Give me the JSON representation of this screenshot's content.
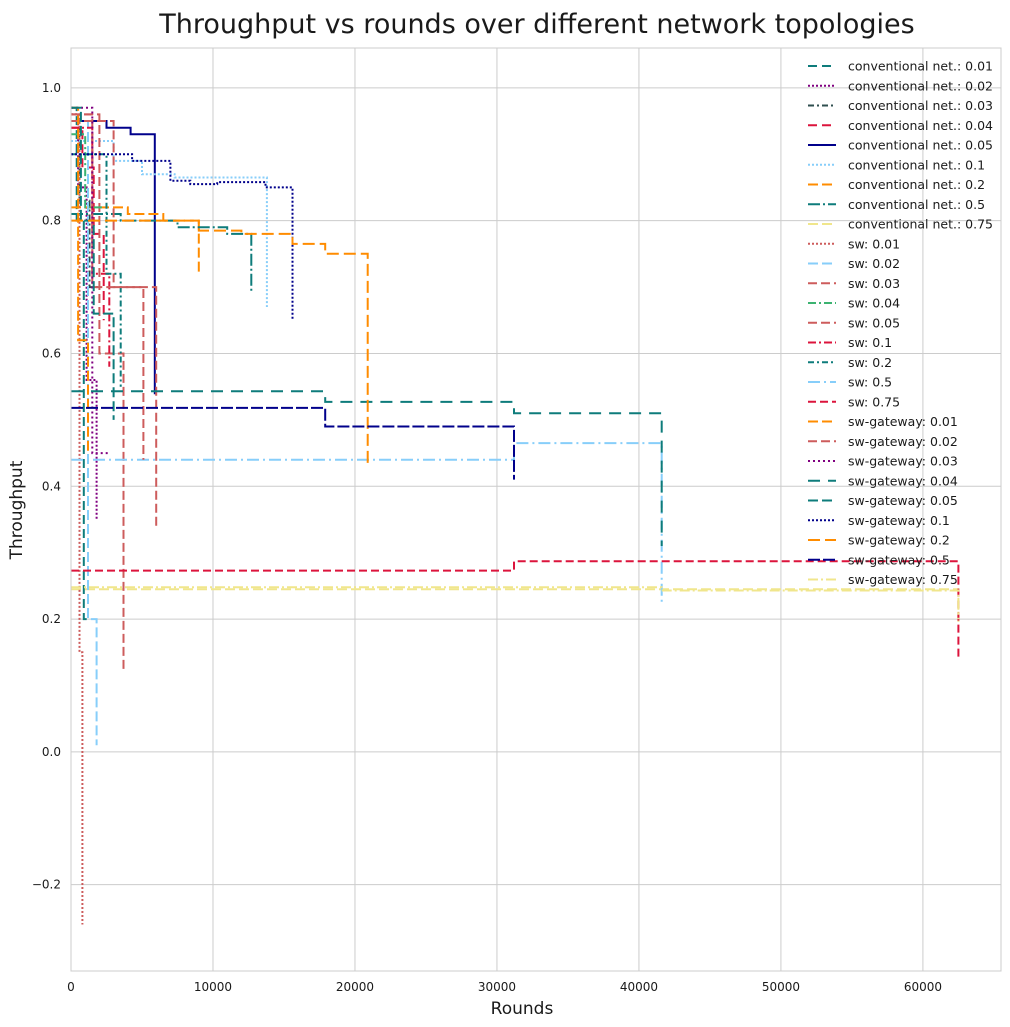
{
  "chart_data": {
    "type": "line",
    "title": "Throughput vs rounds over different network topologies",
    "xlabel": "Rounds",
    "ylabel": "Throughput",
    "xlim": [
      0,
      65500
    ],
    "ylim": [
      -0.33,
      1.06
    ],
    "xticks": [
      0,
      10000,
      20000,
      30000,
      40000,
      50000,
      60000
    ],
    "xtick_labels": [
      "0",
      "10000",
      "20000",
      "30000",
      "40000",
      "50000",
      "60000"
    ],
    "yticks": [
      -0.2,
      0.0,
      0.2,
      0.4,
      0.6,
      0.8,
      1.0
    ],
    "ytick_labels": [
      "−0.2",
      "0.0",
      "0.2",
      "0.4",
      "0.6",
      "0.8",
      "1.0"
    ],
    "grid": true,
    "legend_position": "top-right",
    "series": [
      {
        "name": "conventional net.: 0.01",
        "color": "#0e7c7b",
        "dash": "9 5",
        "x": [
          0,
          400,
          400,
          900,
          900,
          1400
        ],
        "y": [
          0.97,
          0.97,
          0.8,
          0.8,
          0.2,
          0.2
        ]
      },
      {
        "name": "conventional net.: 0.02",
        "color": "#800080",
        "dash": "2 2",
        "x": [
          0,
          500,
          500,
          1100,
          1100,
          1800,
          1800
        ],
        "y": [
          0.96,
          0.96,
          0.85,
          0.85,
          0.56,
          0.56,
          0.35
        ]
      },
      {
        "name": "conventional net.: 0.03",
        "color": "#2f4f4f",
        "dash": "6 3 2 3",
        "x": [
          0,
          600,
          600,
          1300,
          1300,
          2000
        ],
        "y": [
          0.95,
          0.95,
          0.83,
          0.83,
          0.7,
          0.7
        ]
      },
      {
        "name": "conventional net.: 0.04",
        "color": "#dc143c",
        "dash": "9 5",
        "x": [
          0,
          800,
          800,
          1600,
          1600,
          2300,
          2300
        ],
        "y": [
          0.94,
          0.94,
          0.88,
          0.88,
          0.78,
          0.78,
          0.65
        ]
      },
      {
        "name": "conventional net.: 0.05",
        "color": "#00008b",
        "dash": "",
        "x": [
          0,
          2500,
          2500,
          4200,
          4200,
          5900,
          5900,
          6000
        ],
        "y": [
          0.95,
          0.95,
          0.94,
          0.94,
          0.93,
          0.93,
          0.54,
          0.54
        ]
      },
      {
        "name": "conventional net.: 0.1",
        "color": "#87cefa",
        "dash": "2 2",
        "x": [
          0,
          3000,
          3000,
          5000,
          5000,
          7300,
          7300,
          13800,
          13800
        ],
        "y": [
          0.92,
          0.92,
          0.89,
          0.89,
          0.87,
          0.87,
          0.865,
          0.865,
          0.67
        ]
      },
      {
        "name": "conventional net.: 0.2",
        "color": "#ff8c00",
        "dash": "10 4",
        "x": [
          0,
          4000,
          4000,
          6500,
          6500,
          9000,
          9000
        ],
        "y": [
          0.82,
          0.82,
          0.81,
          0.81,
          0.8,
          0.8,
          0.72
        ]
      },
      {
        "name": "conventional net.: 0.5",
        "color": "#0e7c7b",
        "dash": "12 3 2 3",
        "x": [
          0,
          3500,
          3500,
          7500,
          7500,
          11000,
          11000,
          12700,
          12700
        ],
        "y": [
          0.81,
          0.81,
          0.8,
          0.8,
          0.79,
          0.79,
          0.78,
          0.78,
          0.69
        ]
      },
      {
        "name": "conventional net.: 0.75",
        "color": "#f0e68c",
        "dash": "10 4",
        "x": [
          0,
          62500,
          62500
        ],
        "y": [
          0.245,
          0.245,
          0.19
        ]
      },
      {
        "name": "sw: 0.01",
        "color": "#cd5c5c",
        "dash": "2 2",
        "x": [
          0,
          600,
          600,
          800,
          800
        ],
        "y": [
          0.96,
          0.96,
          0.15,
          0.15,
          -0.26
        ]
      },
      {
        "name": "sw: 0.02",
        "color": "#87cefa",
        "dash": "10 4",
        "x": [
          0,
          1200,
          1200,
          1800,
          1800
        ],
        "y": [
          0.95,
          0.95,
          0.2,
          0.2,
          0.01
        ]
      },
      {
        "name": "sw: 0.03",
        "color": "#cd5c5c",
        "dash": "9 4",
        "x": [
          0,
          2000,
          2000,
          3700,
          3700
        ],
        "y": [
          0.96,
          0.96,
          0.6,
          0.6,
          0.12
        ]
      },
      {
        "name": "sw: 0.04",
        "color": "#3cb371",
        "dash": "8 3 2 3",
        "x": [
          0,
          1000,
          1000,
          2200
        ],
        "y": [
          0.93,
          0.93,
          0.82,
          0.82
        ]
      },
      {
        "name": "sw: 0.05",
        "color": "#cd5c5c",
        "dash": "9 4",
        "x": [
          0,
          3000,
          3000,
          6000,
          6000
        ],
        "y": [
          0.95,
          0.95,
          0.7,
          0.7,
          0.34
        ]
      },
      {
        "name": "sw: 0.1",
        "color": "#dc143c",
        "dash": "8 3 2 3",
        "x": [
          0,
          1500,
          1500,
          2700,
          2700
        ],
        "y": [
          0.94,
          0.94,
          0.72,
          0.72,
          0.58
        ]
      },
      {
        "name": "sw: 0.2",
        "color": "#0e7c7b",
        "dash": "6 3 2 3",
        "x": [
          0,
          2500,
          2500,
          3500,
          3500
        ],
        "y": [
          0.9,
          0.9,
          0.72,
          0.72,
          0.55
        ]
      },
      {
        "name": "sw: 0.5",
        "color": "#87cefa",
        "dash": "12 4 2 4",
        "x": [
          0,
          31200,
          31200,
          41600,
          41600
        ],
        "y": [
          0.44,
          0.44,
          0.465,
          0.465,
          0.22
        ]
      },
      {
        "name": "sw: 0.75",
        "color": "#dc143c",
        "dash": "8 4",
        "x": [
          0,
          31200,
          31200,
          62500,
          62500
        ],
        "y": [
          0.273,
          0.273,
          0.287,
          0.287,
          0.14
        ]
      },
      {
        "name": "sw-gateway: 0.01",
        "color": "#ff8c00",
        "dash": "10 4",
        "x": [
          0,
          500,
          500,
          1200,
          1200
        ],
        "y": [
          0.97,
          0.97,
          0.62,
          0.62,
          0.45
        ]
      },
      {
        "name": "sw-gateway: 0.02",
        "color": "#cd5c5c",
        "dash": "9 4",
        "x": [
          0,
          1500,
          1500,
          5100,
          5100
        ],
        "y": [
          0.96,
          0.96,
          0.7,
          0.7,
          0.44
        ]
      },
      {
        "name": "sw-gateway: 0.03",
        "color": "#800080",
        "dash": "2 3",
        "x": [
          0,
          1500,
          1500,
          2700
        ],
        "y": [
          0.97,
          0.97,
          0.45,
          0.45
        ]
      },
      {
        "name": "sw-gateway: 0.04",
        "color": "#0e7c7b",
        "dash": "12 8",
        "x": [
          0,
          17900,
          17900,
          31200,
          31200,
          41600,
          41600
        ],
        "y": [
          0.543,
          0.543,
          0.527,
          0.527,
          0.51,
          0.51,
          0.31
        ]
      },
      {
        "name": "sw-gateway: 0.05",
        "color": "#0e7c7b",
        "dash": "10 4",
        "x": [
          0,
          700,
          700,
          1600,
          1600,
          3000,
          3000
        ],
        "y": [
          0.97,
          0.97,
          0.8,
          0.8,
          0.66,
          0.66,
          0.5
        ]
      },
      {
        "name": "sw-gateway: 0.1",
        "color": "#00008b",
        "dash": "2 2",
        "x": [
          0,
          1700,
          1700,
          4300,
          4300,
          7000,
          7000,
          8400,
          8400,
          10300,
          10300,
          13700,
          13700,
          15600,
          15600
        ],
        "y": [
          0.9,
          0.9,
          0.9,
          0.9,
          0.89,
          0.89,
          0.86,
          0.86,
          0.855,
          0.855,
          0.858,
          0.858,
          0.85,
          0.85,
          0.65
        ]
      },
      {
        "name": "sw-gateway: 0.2",
        "color": "#ff8c00",
        "dash": "12 5",
        "x": [
          0,
          9000,
          9000,
          12000,
          12000,
          15600,
          15600,
          17900,
          17900,
          20900,
          20900
        ],
        "y": [
          0.8,
          0.8,
          0.785,
          0.785,
          0.78,
          0.78,
          0.765,
          0.765,
          0.75,
          0.75,
          0.43
        ]
      },
      {
        "name": "sw-gateway: 0.5",
        "color": "#00008b",
        "dash": "12 3",
        "x": [
          0,
          17900,
          17900,
          31200,
          31200
        ],
        "y": [
          0.518,
          0.518,
          0.49,
          0.49,
          0.41
        ]
      },
      {
        "name": "sw-gateway: 0.75",
        "color": "#f0e68c",
        "dash": "10 3 2 3",
        "x": [
          0,
          41600,
          41600,
          62500,
          62500
        ],
        "y": [
          0.248,
          0.248,
          0.243,
          0.243,
          0.2
        ]
      }
    ]
  }
}
